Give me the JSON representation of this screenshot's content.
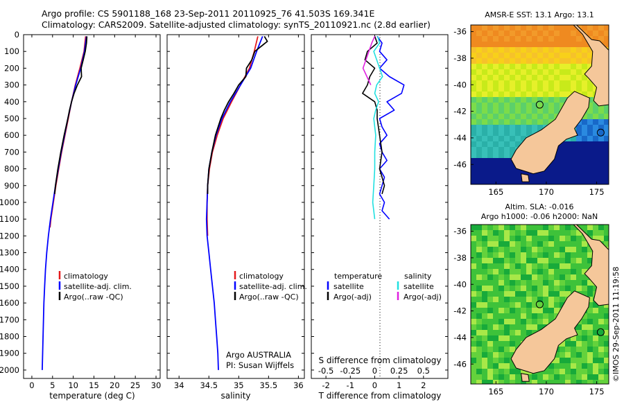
{
  "figure": {
    "title_line1": "Argo profile: CS 5901188_168 23-Sep-2011 20110925_76 41.503S 169.341E",
    "title_line2": "Climatology: CARS2009. Satellite-adjusted climatology: synTS_20110921.nc (2.8d earlier)",
    "credit_line1": "Argo AUSTRALIA",
    "credit_line2": "PI: Susan Wijffels",
    "stamp": "©IMOS 29-Sep-2011 11:19:58"
  },
  "colors": {
    "climatology": "#e41a1c",
    "satellite": "#0000ff",
    "argo": "#000000",
    "sal_satellite": "#20e0e0",
    "sal_argo": "#e020e0",
    "land": "#f5c79a",
    "coast": "#000000"
  },
  "chart_data": [
    {
      "type": "line",
      "panel": "temperature",
      "xlabel": "temperature (deg C)",
      "xlim": [
        -2,
        31
      ],
      "xticks": [
        0,
        5,
        10,
        15,
        20,
        25,
        30
      ],
      "ylim": [
        2050,
        0
      ],
      "yticks": [
        0,
        100,
        200,
        300,
        400,
        500,
        600,
        700,
        800,
        900,
        1000,
        1100,
        1200,
        1300,
        1400,
        1500,
        1600,
        1700,
        1800,
        1900,
        2000
      ],
      "legend": [
        "climatology",
        "satellite-adj. clim.",
        "Argo(..raw -QC)"
      ],
      "series": [
        {
          "name": "climatology",
          "depth": [
            10,
            100,
            200,
            300,
            400,
            500,
            600,
            700,
            800,
            900,
            1000,
            1100,
            1150
          ],
          "values": [
            13.0,
            12.6,
            11.6,
            10.5,
            9.6,
            8.8,
            8.0,
            7.2,
            6.5,
            5.8,
            5.2,
            4.6,
            4.4
          ]
        },
        {
          "name": "satellite-adj. clim.",
          "depth": [
            10,
            100,
            200,
            300,
            400,
            500,
            600,
            700,
            800,
            900,
            1000,
            1100,
            1200,
            1300,
            1400,
            1500,
            1600,
            1700,
            1800,
            1900,
            2000
          ],
          "values": [
            13.2,
            12.7,
            11.8,
            10.6,
            9.6,
            8.7,
            7.9,
            7.1,
            6.4,
            5.7,
            5.1,
            4.5,
            4.0,
            3.6,
            3.3,
            3.1,
            2.9,
            2.8,
            2.7,
            2.6,
            2.5
          ]
        },
        {
          "name": "Argo(..raw -QC)",
          "depth": [
            10,
            50,
            100,
            150,
            200,
            250,
            300,
            350,
            400,
            450,
            500,
            600,
            700,
            800,
            900,
            950
          ],
          "values": [
            13.3,
            13.2,
            12.9,
            12.4,
            11.9,
            12.0,
            11.0,
            10.2,
            9.6,
            9.1,
            8.7,
            7.8,
            7.0,
            6.3,
            5.7,
            5.5
          ]
        }
      ]
    },
    {
      "type": "line",
      "panel": "salinity",
      "xlabel": "salinity",
      "xlim": [
        33.8,
        36.1
      ],
      "xticks": [
        34,
        34.5,
        35,
        35.5,
        36
      ],
      "ylim": [
        2050,
        0
      ],
      "legend": [
        "climatology",
        "satellite-adj. clim.",
        "Argo(..raw -QC)"
      ],
      "series": [
        {
          "name": "climatology",
          "depth": [
            10,
            100,
            200,
            300,
            400,
            500,
            600,
            700,
            800,
            900,
            1000,
            1100,
            1200
          ],
          "values": [
            35.32,
            35.26,
            35.18,
            35.03,
            34.88,
            34.74,
            34.64,
            34.56,
            34.51,
            34.48,
            34.47,
            34.47,
            34.48
          ]
        },
        {
          "name": "satellite-adj. clim.",
          "depth": [
            10,
            100,
            200,
            300,
            400,
            500,
            600,
            700,
            800,
            900,
            1000,
            1100,
            1200,
            1300,
            1400,
            1500,
            1600,
            1700,
            1800,
            1900,
            2000
          ],
          "values": [
            35.4,
            35.3,
            35.2,
            35.03,
            34.86,
            34.72,
            34.62,
            34.55,
            34.5,
            34.48,
            34.47,
            34.46,
            34.47,
            34.5,
            34.53,
            34.56,
            34.59,
            34.61,
            34.63,
            34.65,
            34.66
          ]
        },
        {
          "name": "Argo(..raw -QC)",
          "depth": [
            10,
            40,
            100,
            150,
            200,
            250,
            300,
            350,
            400,
            450,
            500,
            600,
            700,
            800,
            900,
            950
          ],
          "values": [
            35.43,
            35.48,
            35.27,
            35.22,
            35.13,
            35.12,
            35.0,
            34.92,
            34.83,
            34.76,
            34.7,
            34.61,
            34.55,
            34.5,
            34.48,
            34.48
          ]
        }
      ]
    },
    {
      "type": "line",
      "panel": "difference",
      "xlabel": "T difference from climatology",
      "xlabel_top": "S difference from climatology",
      "xlim": [
        -2.6,
        3.0
      ],
      "xticks_T": [
        -2,
        -1,
        0,
        1,
        2
      ],
      "xticks_S": [
        -0.5,
        -0.25,
        0,
        0.25,
        0.5
      ],
      "ylim": [
        2050,
        0
      ],
      "legend_temperature_title": "temperature",
      "legend_salinity_title": "salinity",
      "legend_temperature": [
        "satellite",
        "Argo(-adj)"
      ],
      "legend_salinity": [
        "satellite",
        "Argo(-adj)"
      ],
      "series": [
        {
          "name": "temperature satellite",
          "depth": [
            10,
            50,
            100,
            150,
            200,
            250,
            300,
            350,
            400,
            450,
            500,
            550,
            600,
            650,
            700,
            750,
            800,
            850,
            900,
            950,
            1000,
            1050,
            1100
          ],
          "values": [
            0.1,
            0.3,
            0.2,
            0.5,
            0.2,
            0.6,
            1.2,
            1.1,
            0.5,
            0.8,
            0.2,
            0.3,
            0.5,
            0.2,
            0.3,
            0.5,
            0.2,
            0.4,
            0.3,
            0.2,
            0.4,
            0.3,
            0.6
          ]
        },
        {
          "name": "temperature Argo(-adj)",
          "depth": [
            10,
            50,
            100,
            150,
            200,
            250,
            300,
            350,
            400,
            450,
            500,
            600,
            700,
            800,
            900,
            950
          ],
          "values": [
            0.0,
            0.1,
            -0.3,
            -0.4,
            0.0,
            -0.2,
            -0.3,
            -0.5,
            0.0,
            0.1,
            0.1,
            0.2,
            0.3,
            0.2,
            0.4,
            0.3
          ]
        },
        {
          "name": "salinity satellite",
          "depth": [
            10,
            50,
            100,
            150,
            200,
            250,
            300,
            350,
            400,
            450,
            500,
            600,
            700,
            800,
            900,
            1000,
            1100
          ],
          "values": [
            0.03,
            0.05,
            -0.01,
            0.02,
            0.05,
            0.08,
            0.02,
            0.0,
            0.04,
            0.01,
            -0.01,
            0.01,
            0.0,
            0.0,
            -0.01,
            -0.02,
            0.0
          ]
        },
        {
          "name": "salinity Argo(-adj)",
          "depth": [
            10,
            50,
            100,
            150,
            200,
            250,
            300
          ],
          "values": [
            0.0,
            -0.03,
            -0.06,
            -0.09,
            -0.12,
            -0.08,
            -0.04
          ]
        }
      ]
    },
    {
      "type": "heatmap",
      "panel": "sst-map",
      "title": "AMSR-E SST: 13.1  Argo: 13.1",
      "xticks": [
        165,
        170,
        175
      ],
      "yticks": [
        -36,
        -38,
        -40,
        -42,
        -44,
        -46
      ],
      "xlim": [
        162.5,
        176.2
      ],
      "ylim": [
        -47.5,
        -35.5
      ],
      "float_position": {
        "lon": 169.341,
        "lat": -41.503
      }
    },
    {
      "type": "heatmap",
      "panel": "sla-map",
      "title_line1": "Altim. SLA: -0.016",
      "title_line2": "Argo h1000: -0.06 h2000: NaN",
      "xticks": [
        165,
        170,
        175
      ],
      "yticks": [
        -36,
        -38,
        -40,
        -42,
        -44,
        -46
      ],
      "xlim": [
        162.5,
        176.2
      ],
      "ylim": [
        -47.5,
        -35.5
      ],
      "float_position": {
        "lon": 169.341,
        "lat": -41.503
      }
    }
  ]
}
